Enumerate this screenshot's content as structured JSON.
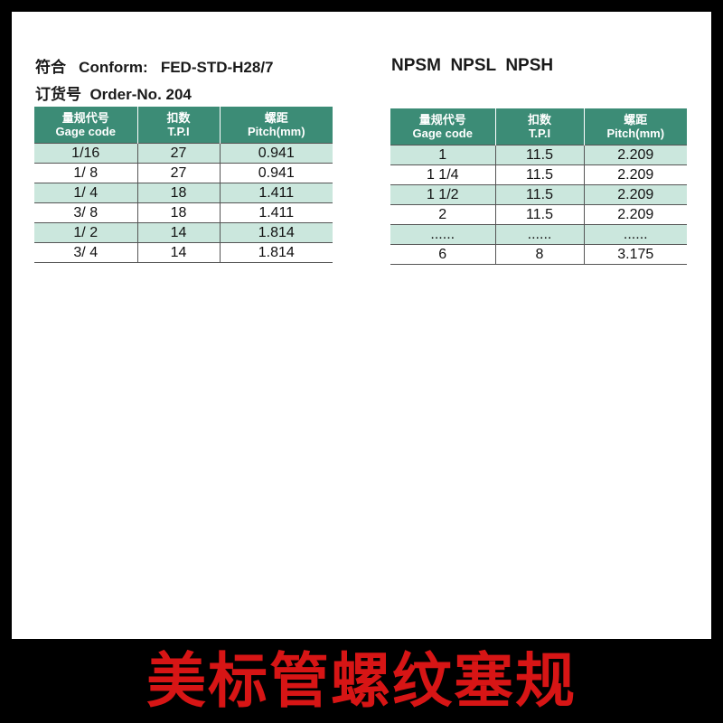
{
  "left": {
    "conform_cn": "符合",
    "conform": "Conform:",
    "standard": "FED-STD-H28/7",
    "order_cn": "订货号",
    "order": "Order-No. 204",
    "headers": [
      {
        "cn": "量规代号",
        "en": "Gage code"
      },
      {
        "cn": "扣数",
        "en": "T.P.I"
      },
      {
        "cn": "螺距",
        "en": "Pitch(mm)"
      }
    ],
    "rows": [
      [
        "1/16",
        "27",
        "0.941"
      ],
      [
        "1/ 8",
        "27",
        "0.941"
      ],
      [
        "1/ 4",
        "18",
        "1.411"
      ],
      [
        "3/ 8",
        "18",
        "1.411"
      ],
      [
        "1/ 2",
        "14",
        "1.814"
      ],
      [
        "3/ 4",
        "14",
        "1.814"
      ]
    ]
  },
  "right": {
    "title": "NPSM  NPSL  NPSH",
    "headers": [
      {
        "cn": "量规代号",
        "en": "Gage code"
      },
      {
        "cn": "扣数",
        "en": "T.P.I"
      },
      {
        "cn": "螺距",
        "en": "Pitch(mm)"
      }
    ],
    "rows": [
      [
        "1",
        "11.5",
        "2.209"
      ],
      [
        "1 1/4",
        "11.5",
        "2.209"
      ],
      [
        "1 1/2",
        "11.5",
        "2.209"
      ],
      [
        "2",
        "11.5",
        "2.209"
      ],
      [
        "......",
        "......",
        "......"
      ],
      [
        "6",
        "8",
        "3.175"
      ]
    ]
  },
  "banner": "美标管螺纹塞规",
  "colors": {
    "header": "#3c8c76",
    "stripe": "#cbe7dd",
    "banner_text": "#d71515"
  }
}
